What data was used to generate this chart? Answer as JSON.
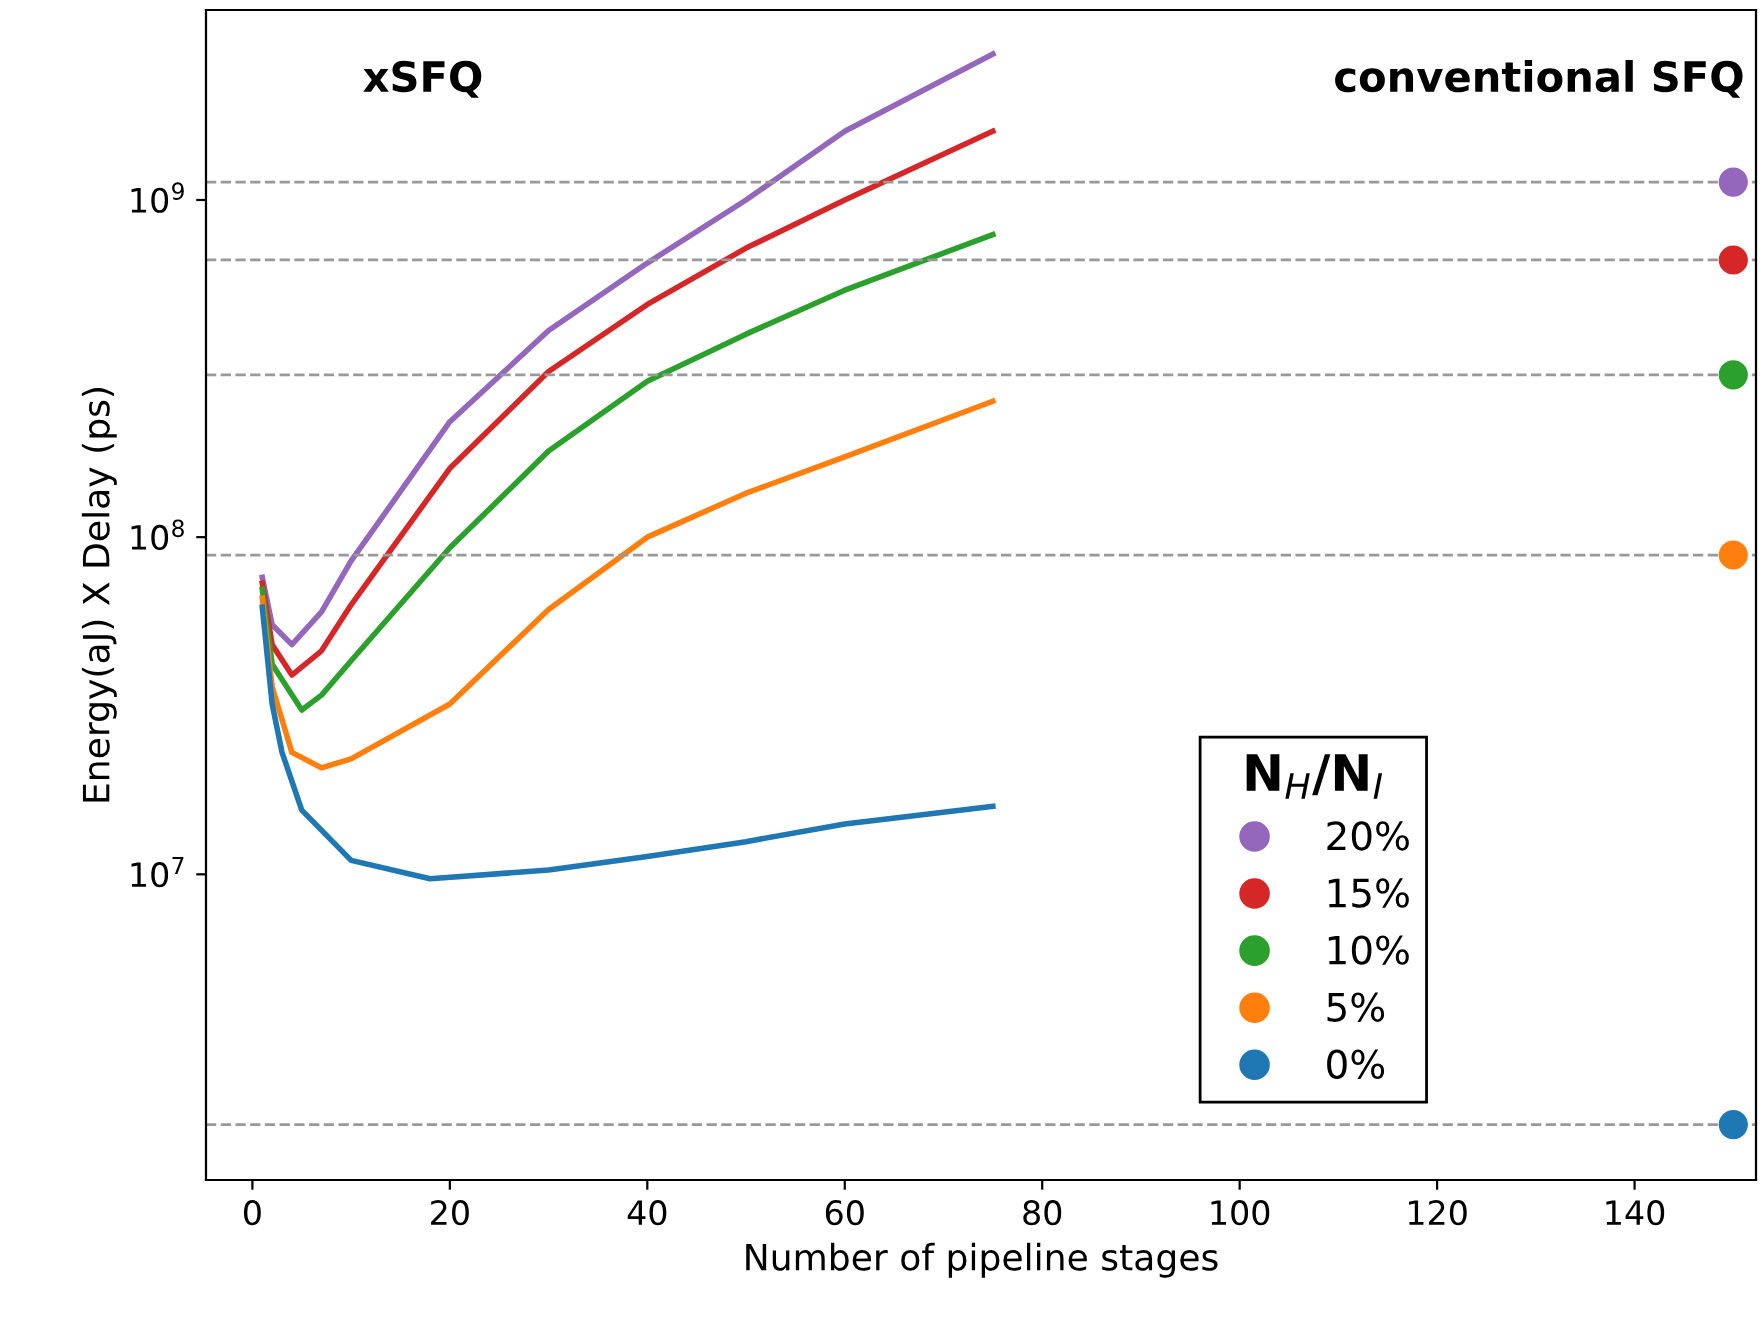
{
  "chart_data": {
    "type": "line",
    "xlabel": "Number of pipeline stages",
    "ylabel": "Energy(aJ) X Delay (ps)",
    "legend_title": "N$_{H}$/N$_{I}$",
    "log": "y",
    "grid": false,
    "legend": "lower right",
    "line_style": "solid",
    "xlim": [
      -4.7,
      152.3
    ],
    "xticks": [
      0,
      20,
      40,
      60,
      80,
      100,
      120,
      140
    ],
    "ylim": [
      1240000,
      3660000000
    ],
    "yticks": [
      {
        "value": 10000000,
        "label": "10$^{7}$"
      },
      {
        "value": 100000000,
        "label": "10$^{8}$"
      },
      {
        "value": 1000000000,
        "label": "10$^{9}$"
      }
    ],
    "annotations": [
      "xSFQ",
      "conventional SFQ"
    ],
    "series": [
      {
        "color": "#9467bd",
        "x": [
          1,
          2,
          4,
          7,
          10,
          20,
          30,
          40,
          50,
          60,
          75
        ],
        "values": [
          76000000,
          55000000,
          48000000,
          60000000,
          85000000,
          220000000,
          410000000,
          650000000,
          1000000000,
          1600000000,
          2710000000
        ]
      },
      {
        "color": "#d62728",
        "x": [
          1,
          2,
          4,
          7,
          10,
          20,
          30,
          40,
          50,
          60,
          75
        ],
        "values": [
          73000000,
          48000000,
          39000000,
          46000000,
          63000000,
          160000000,
          310000000,
          490000000,
          720000000,
          1000000000,
          1600000000
        ]
      },
      {
        "color": "#2ca02c",
        "x": [
          1,
          2,
          5,
          7,
          10,
          20,
          30,
          40,
          50,
          60,
          75
        ],
        "values": [
          70000000,
          42000000,
          30700000,
          34000000,
          43000000,
          93000000,
          180000000,
          290000000,
          400000000,
          540000000,
          790000000
        ]
      },
      {
        "color": "#ff7f0e",
        "x": [
          1,
          2,
          4,
          7,
          10,
          20,
          30,
          40,
          50,
          60,
          75
        ],
        "values": [
          66000000,
          36000000,
          23000000,
          20700000,
          22000000,
          32000000,
          61000000,
          100000000,
          135000000,
          173000000,
          253000000
        ]
      },
      {
        "color": "#1f77b4",
        "x": [
          1,
          2,
          3,
          5,
          10,
          18,
          30,
          40,
          50,
          60,
          75
        ],
        "values": [
          62000000,
          32000000,
          23000000,
          15500000,
          11000000,
          9700000,
          10300000,
          11300000,
          12500000,
          14100000,
          15900000
        ]
      },
      {
        "type": "scatter",
        "name": "20%",
        "color": "#9467bd",
        "x": [
          150
        ],
        "values": [
          1130000000
        ]
      },
      {
        "type": "scatter",
        "name": "15%",
        "color": "#d62728",
        "x": [
          150
        ],
        "values": [
          664000000
        ]
      },
      {
        "type": "scatter",
        "name": "10%",
        "color": "#2ca02c",
        "x": [
          150
        ],
        "values": [
          303000000
        ]
      },
      {
        "type": "scatter",
        "name": "5%",
        "color": "#ff7f0e",
        "x": [
          150
        ],
        "values": [
          88500000
        ]
      },
      {
        "type": "scatter",
        "name": "0%",
        "color": "#1f77b4",
        "x": [
          150
        ],
        "values": [
          1810000
        ]
      }
    ],
    "ref_lines": [
      {
        "axis": "y",
        "value": 1130000000,
        "color": "#999999",
        "line_style": "dashed"
      },
      {
        "axis": "y",
        "value": 664000000,
        "color": "#999999",
        "line_style": "dashed"
      },
      {
        "axis": "y",
        "value": 303000000,
        "color": "#999999",
        "line_style": "dashed"
      },
      {
        "axis": "y",
        "value": 88500000,
        "color": "#999999",
        "line_style": "dashed"
      },
      {
        "axis": "y",
        "value": 1810000,
        "color": "#999999",
        "line_style": "dashed"
      }
    ]
  }
}
